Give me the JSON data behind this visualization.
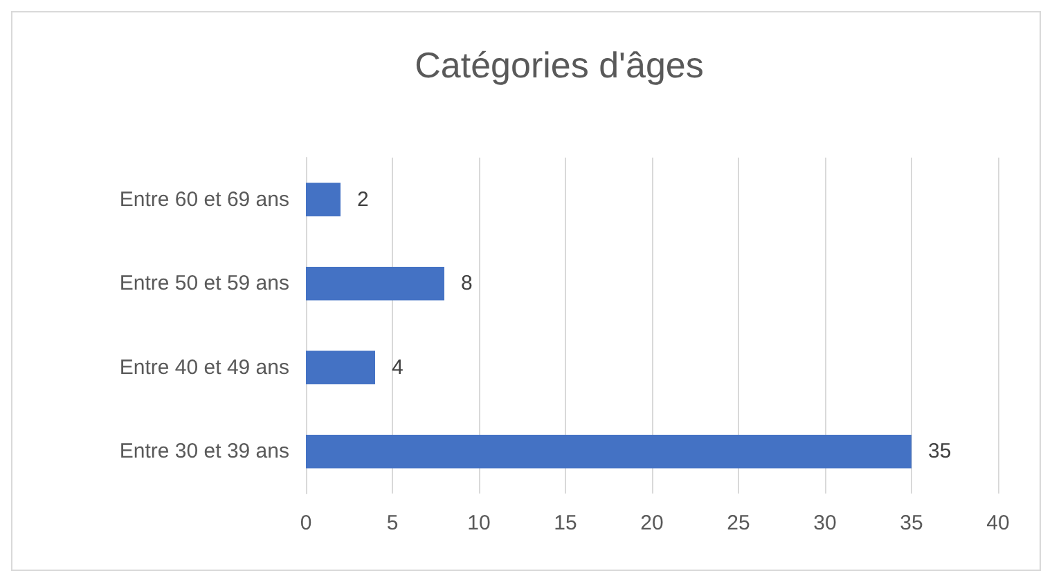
{
  "chart_data": {
    "type": "bar",
    "orientation": "horizontal",
    "title": "Catégories d'âges",
    "categories": [
      "Entre 60 et 69 ans",
      "Entre 50 et 59 ans",
      "Entre 40 et 49 ans",
      "Entre 30 et 39 ans"
    ],
    "values": [
      2,
      8,
      4,
      35
    ],
    "color": "#4472c4",
    "xlim": [
      0,
      40
    ],
    "xticks": [
      0,
      5,
      10,
      15,
      20,
      25,
      30,
      35,
      40
    ],
    "grid": "x",
    "data_labels": true
  }
}
